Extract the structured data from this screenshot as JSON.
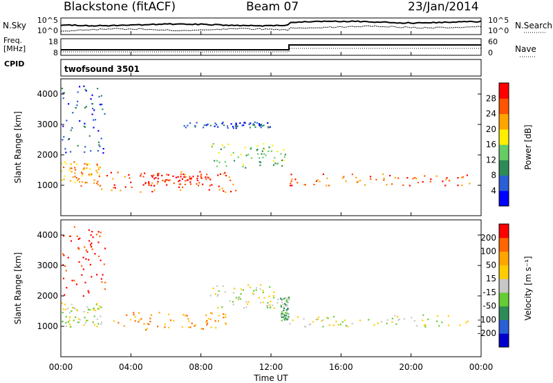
{
  "header": {
    "station": "Blackstone (fitACF)",
    "beam": "Beam 07",
    "date": "23/Jan/2014"
  },
  "noise_panel": {
    "left_label": "N.Sky",
    "right_label": "N.Search",
    "left_ticks": [
      "10^5",
      "10^0"
    ],
    "right_ticks": [
      "10^5",
      "10^0"
    ]
  },
  "freq_panel": {
    "left_label_1": "Freq.",
    "left_label_2": "[MHz]",
    "left_ticks": [
      "18",
      "8"
    ],
    "right_label": "Nave",
    "right_ticks": [
      "60",
      "0"
    ]
  },
  "cpid_panel": {
    "label": "CPID",
    "program": "twofsound 3501"
  },
  "colors": {
    "power": [
      "#0000ff",
      "#2a5fd6",
      "#2e8b57",
      "#66cc66",
      "#ffee00",
      "#ffa500",
      "#ff5500",
      "#ff0000"
    ],
    "velocity": [
      "#0000cc",
      "#2a5fd6",
      "#2e8b57",
      "#66cc33",
      "#c8c8c8",
      "#ffcc00",
      "#ffa500",
      "#ff6600",
      "#ff0000"
    ]
  },
  "chart_data": [
    {
      "type": "heatmap",
      "name": "power",
      "ylabel": "Slant Range [km]",
      "ylim": [
        0,
        4500
      ],
      "yticks": [
        "1000",
        "2000",
        "3000",
        "4000"
      ],
      "xlim": [
        0,
        24
      ],
      "colorbar_label": "Power [dB]",
      "colorbar_ticks": [
        "4",
        "8",
        "12",
        "16",
        "20",
        "24",
        "28"
      ],
      "bands": [
        {
          "t": [
            0.0,
            2.3
          ],
          "r": [
            1000,
            1800
          ],
          "level": 5
        },
        {
          "t": [
            2.0,
            10.0
          ],
          "r": [
            800,
            1500
          ],
          "level": 6
        },
        {
          "t": [
            4.5,
            8.5
          ],
          "r": [
            1000,
            1400
          ],
          "level": 7
        },
        {
          "t": [
            8.5,
            12.8
          ],
          "r": [
            1600,
            2400
          ],
          "level": 3
        },
        {
          "t": [
            13.0,
            23.5
          ],
          "r": [
            1000,
            1400
          ],
          "level": 6
        },
        {
          "t": [
            0.0,
            2.5
          ],
          "r": [
            2000,
            4300
          ],
          "level": 1
        },
        {
          "t": [
            7.0,
            12.0
          ],
          "r": [
            2900,
            3100
          ],
          "level": 1
        }
      ]
    },
    {
      "type": "heatmap",
      "name": "velocity",
      "xlabel": "Time UT",
      "ylabel": "Slant Range [km]",
      "ylim": [
        0,
        4500
      ],
      "yticks": [
        "1000",
        "2000",
        "3000",
        "4000"
      ],
      "xlim": [
        0,
        24
      ],
      "xticks": [
        "00:00",
        "04:00",
        "08:00",
        "12:00",
        "16:00",
        "20:00",
        "00:00"
      ],
      "colorbar_label": "Velocity [m s⁻¹]",
      "colorbar_ticks": [
        "200",
        "100",
        "50",
        "15",
        "-15",
        "-50",
        "-100",
        "-200"
      ],
      "bands": [
        {
          "t": [
            0.0,
            2.3
          ],
          "r": [
            1000,
            1800
          ],
          "level": 4
        },
        {
          "t": [
            3.0,
            9.5
          ],
          "r": [
            900,
            1500
          ],
          "level": 6
        },
        {
          "t": [
            8.5,
            12.5
          ],
          "r": [
            1600,
            2400
          ],
          "level": 4
        },
        {
          "t": [
            12.5,
            13.0
          ],
          "r": [
            1200,
            2000
          ],
          "level": 3
        },
        {
          "t": [
            13.0,
            23.5
          ],
          "r": [
            1000,
            1400
          ],
          "level": 4
        },
        {
          "t": [
            0.0,
            2.5
          ],
          "r": [
            2000,
            4300
          ],
          "level": 8
        }
      ]
    }
  ]
}
